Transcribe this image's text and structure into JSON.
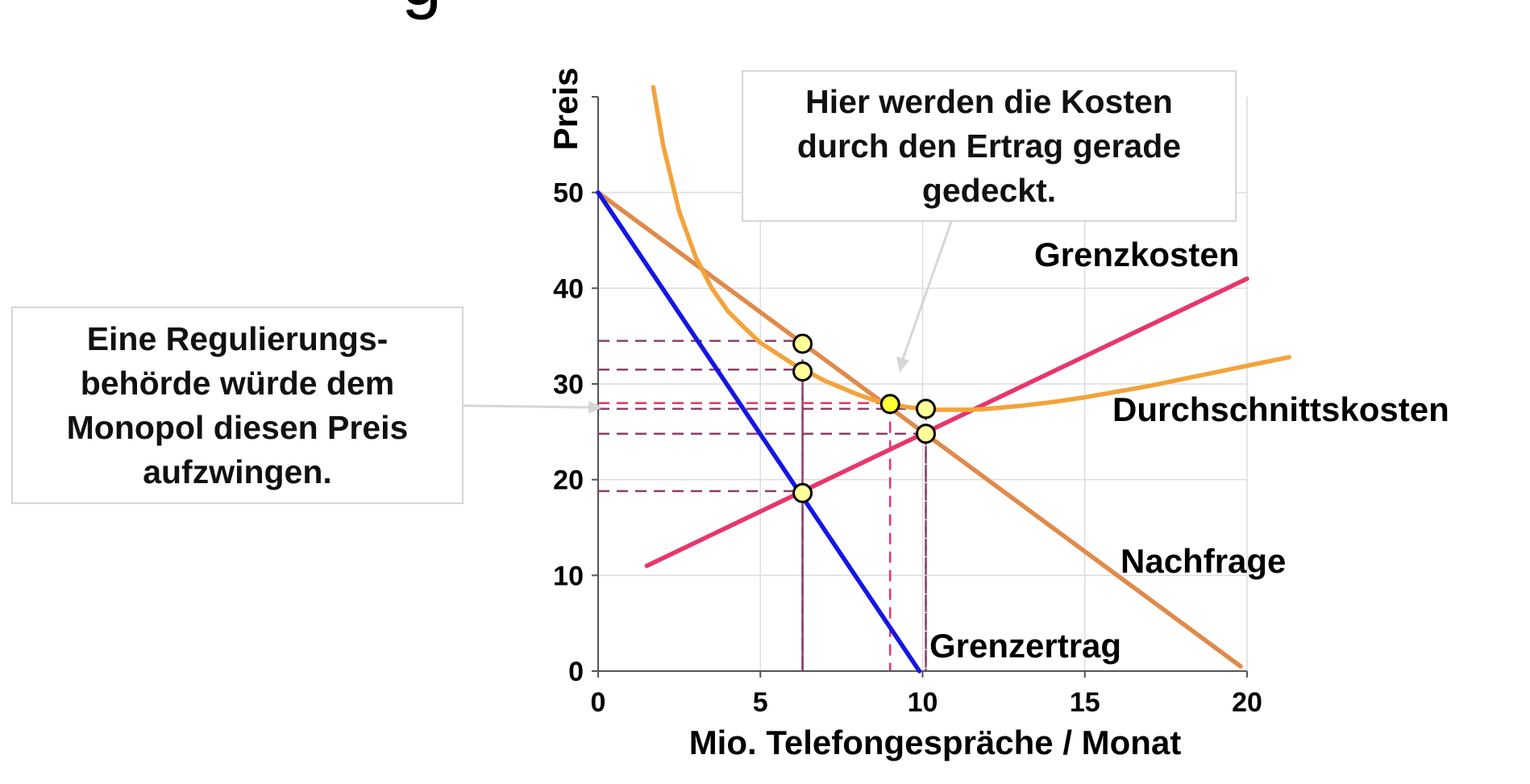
{
  "chart_data": {
    "type": "line",
    "title": "",
    "xlabel": "Mio. Telefongespräche / Monat",
    "ylabel": "Preis",
    "xlim": [
      0,
      20
    ],
    "ylim": [
      0,
      60
    ],
    "x_ticks": [
      0,
      5,
      10,
      15,
      20
    ],
    "y_ticks": [
      0,
      10,
      20,
      30,
      40,
      50
    ],
    "grid": true,
    "series": [
      {
        "name": "Nachfrage",
        "color": "#e08a4a",
        "x": [
          0,
          19.8
        ],
        "y": [
          50,
          0.5
        ]
      },
      {
        "name": "Grenzertrag",
        "color": "#1515e6",
        "x": [
          0,
          9.9
        ],
        "y": [
          50,
          0
        ]
      },
      {
        "name": "Grenzkosten",
        "color": "#e8366a",
        "x": [
          1.5,
          20
        ],
        "y": [
          11,
          41
        ]
      },
      {
        "name": "Durchschnittskosten",
        "color": "#f3a33b",
        "x": [
          1.7,
          2,
          2.5,
          3,
          3.5,
          4,
          4.5,
          5,
          5.5,
          6,
          6.5,
          7,
          7.5,
          8,
          8.5,
          9,
          9.5,
          10,
          10.5,
          11,
          11.5,
          12,
          13,
          14,
          15,
          16,
          17,
          18,
          19,
          20,
          21.3
        ],
        "y": [
          61,
          55,
          48,
          43.3,
          40,
          37.6,
          35.9,
          34.3,
          33.2,
          32.1,
          31.2,
          30.3,
          29.6,
          28.9,
          28.3,
          27.9,
          27.6,
          27.4,
          27.3,
          27.3,
          27.3,
          27.4,
          27.7,
          28.1,
          28.6,
          29.2,
          29.8,
          30.5,
          31.2,
          31.9,
          32.8
        ]
      }
    ],
    "points": [
      {
        "x": 6.3,
        "y": 34.2,
        "fill": "#ffff99"
      },
      {
        "x": 6.3,
        "y": 31.3,
        "fill": "#ffff99"
      },
      {
        "x": 6.3,
        "y": 18.6,
        "fill": "#ffff99"
      },
      {
        "x": 9.0,
        "y": 27.9,
        "fill": "#ffff33"
      },
      {
        "x": 10.1,
        "y": 27.4,
        "fill": "#ffff99"
      },
      {
        "x": 10.1,
        "y": 24.8,
        "fill": "#ffff99"
      }
    ],
    "guides": [
      {
        "x": 6.3,
        "y": 34.5,
        "color": "#8e3f6a"
      },
      {
        "x": 6.3,
        "y": 31.5,
        "color": "#8e3f6a"
      },
      {
        "x": 6.3,
        "y": 18.8,
        "color": "#8e3f6a"
      },
      {
        "x": 9.0,
        "y": 28.0,
        "color": "#e8366a"
      },
      {
        "x": 10.1,
        "y": 27.4,
        "color": "#8e3f6a"
      },
      {
        "x": 10.1,
        "y": 24.8,
        "color": "#8e3f6a"
      }
    ]
  },
  "labels": {
    "grenzkosten": "Grenzkosten",
    "durchschnittskosten": "Durchschnittskosten",
    "nachfrage": "Nachfrage",
    "grenzertrag": "Grenzertrag",
    "title_fragment": "g"
  },
  "callouts": {
    "regulator": "Eine Regulierungs-\nbehörde würde dem\nMonopol diesen Preis\naufzwingen.",
    "cost": "Hier werden die Kosten\ndurch den Ertrag gerade\ngedeckt."
  }
}
